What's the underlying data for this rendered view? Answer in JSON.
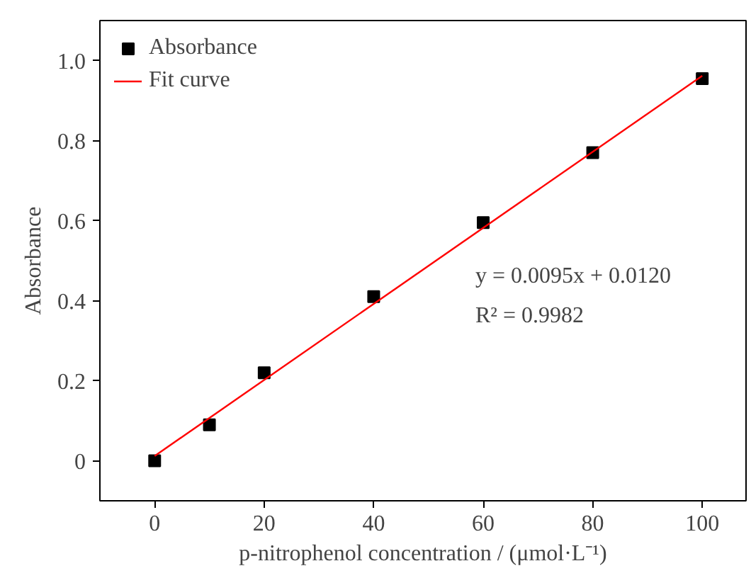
{
  "chart_data": {
    "type": "scatter",
    "xlabel": "p-nitrophenol concentration / (μmol·L⁻¹)",
    "ylabel": "Absorbance",
    "series": [
      {
        "name": "Absorbance",
        "color": "#000000",
        "marker": "square",
        "x": [
          0,
          10,
          20,
          40,
          60,
          80,
          100
        ],
        "values": [
          0.0,
          0.09,
          0.22,
          0.41,
          0.595,
          0.77,
          0.955
        ]
      },
      {
        "name": "Fit curve",
        "type": "line",
        "color": "#ff0000",
        "line_style": "solid",
        "x": [
          0,
          100
        ],
        "values": [
          0.012,
          0.962
        ]
      }
    ],
    "annotations": [
      "y = 0.0095x + 0.0120",
      "R² = 0.9982"
    ],
    "xlim": [
      -10,
      108
    ],
    "ylim": [
      -0.1,
      1.1
    ],
    "xticks": [
      0,
      20,
      40,
      60,
      80,
      100
    ],
    "yticks": [
      0,
      0.2,
      0.4,
      0.6,
      0.8,
      {
        "value": 1.0,
        "label": "1.0"
      }
    ],
    "grid": false,
    "legend": "top left"
  }
}
